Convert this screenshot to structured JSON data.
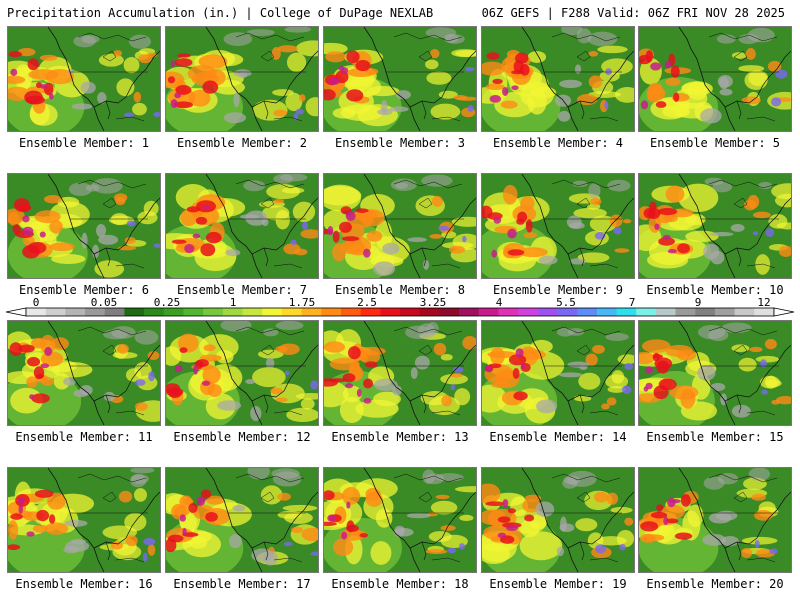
{
  "header": {
    "left_title": "Precipitation Accumulation (in.) | College of DuPage NEXLAB",
    "right_title": "06Z GEFS | F288 Valid: 06Z FRI NOV 28 2025"
  },
  "members": [
    {
      "label": "Ensemble Member: 1"
    },
    {
      "label": "Ensemble Member: 2"
    },
    {
      "label": "Ensemble Member: 3"
    },
    {
      "label": "Ensemble Member: 4"
    },
    {
      "label": "Ensemble Member: 5"
    },
    {
      "label": "Ensemble Member: 6"
    },
    {
      "label": "Ensemble Member: 7"
    },
    {
      "label": "Ensemble Member: 8"
    },
    {
      "label": "Ensemble Member: 9"
    },
    {
      "label": "Ensemble Member: 10"
    },
    {
      "label": "Ensemble Member: 11"
    },
    {
      "label": "Ensemble Member: 12"
    },
    {
      "label": "Ensemble Member: 13"
    },
    {
      "label": "Ensemble Member: 14"
    },
    {
      "label": "Ensemble Member: 15"
    },
    {
      "label": "Ensemble Member: 16"
    },
    {
      "label": "Ensemble Member: 17"
    },
    {
      "label": "Ensemble Member: 18"
    },
    {
      "label": "Ensemble Member: 19"
    },
    {
      "label": "Ensemble Member: 20"
    }
  ],
  "colorbar": {
    "tick_labels": [
      "0",
      "0.05",
      "0.25",
      "1",
      "1.75",
      "2.5",
      "3.25",
      "4",
      "5.5",
      "7",
      "9",
      "12"
    ],
    "colors": [
      "#e8e8e8",
      "#cfcfcf",
      "#b4b4b4",
      "#9a9a9a",
      "#7f7f7f",
      "#1f6b12",
      "#2c8a1b",
      "#3aa024",
      "#52b62e",
      "#77c83a",
      "#9ed93f",
      "#c6e83c",
      "#f2f533",
      "#ffd92a",
      "#ffb21f",
      "#ff8a14",
      "#ff5c0f",
      "#ff2a0f",
      "#e8101c",
      "#c8081f",
      "#a8061e",
      "#8c0a2a",
      "#a01060",
      "#c81c8c",
      "#e030b8",
      "#d040e0",
      "#a050f0",
      "#7a68f4",
      "#5c8cf8",
      "#46b8f8",
      "#2ce0f0",
      "#7af0e8",
      "#b8c8c8",
      "#9a9a9a",
      "#808080",
      "#a0a0a0",
      "#c8c8c8",
      "#e0e0e0"
    ]
  },
  "precip_colors": {
    "land_green": "#3a8a26",
    "light_green": "#77c83a",
    "yellow": "#f2f533",
    "orange": "#ff8a14",
    "red": "#e8101c",
    "magenta": "#c81c8c",
    "purple": "#7a68f4",
    "gray": "#a8a8a8"
  }
}
